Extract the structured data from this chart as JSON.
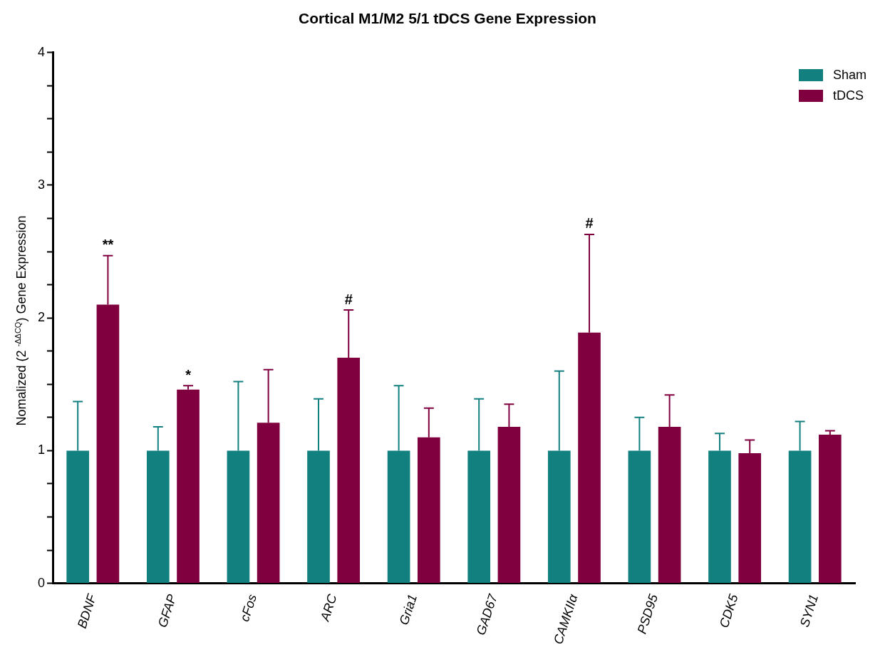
{
  "chart_data": {
    "type": "bar",
    "title": "Cortical M1/M2 5/1 tDCS Gene Expression",
    "ylabel": "Nomalized (2 $^{-ΔΔCQ}$) Gene Expression",
    "categories": [
      "BDNF",
      "GFAP",
      "cFos",
      "ARC",
      "Gria1",
      "GAD67",
      "CAMKIIα",
      "PSD95",
      "CDK5",
      "SYN1"
    ],
    "series": [
      {
        "name": "Sham",
        "color": "#12807f",
        "values": [
          1,
          1,
          1,
          1,
          1,
          1,
          1,
          1,
          1,
          1
        ],
        "errors": [
          [
            1,
            1.37
          ],
          [
            1,
            1.18
          ],
          [
            1,
            1.52
          ],
          [
            1,
            1.39
          ],
          [
            1,
            1.49
          ],
          [
            1,
            1.39
          ],
          [
            1,
            1.6
          ],
          [
            1,
            1.25
          ],
          [
            1,
            1.13
          ],
          [
            1,
            1.22
          ]
        ]
      },
      {
        "name": "tDCS",
        "color": "#80003f",
        "values": [
          2.1,
          1.46,
          1.21,
          1.7,
          1.1,
          1.18,
          1.89,
          1.18,
          0.98,
          1.12
        ],
        "errors": [
          [
            2.1,
            2.47
          ],
          [
            1.46,
            1.49
          ],
          [
            1.21,
            1.61
          ],
          [
            1.7,
            2.06
          ],
          [
            1.1,
            1.32
          ],
          [
            1.18,
            1.35
          ],
          [
            1.89,
            2.63
          ],
          [
            1.18,
            1.42
          ],
          [
            0.98,
            1.08
          ],
          [
            1.12,
            1.15
          ]
        ]
      }
    ],
    "ylim": [
      0,
      4
    ],
    "yticks": [
      0,
      {
        "value": 0.25,
        "label": null
      },
      {
        "value": 0.5,
        "label": null
      },
      {
        "value": 0.75,
        "label": null
      },
      1,
      {
        "value": 1.25,
        "label": null
      },
      {
        "value": 1.5,
        "label": null
      },
      {
        "value": 1.75,
        "label": null
      },
      2,
      {
        "value": 2.25,
        "label": null
      },
      {
        "value": 2.5,
        "label": null
      },
      {
        "value": 2.75,
        "label": null
      },
      3,
      {
        "value": 3.25,
        "label": null
      },
      {
        "value": 3.5,
        "label": null
      },
      {
        "value": 3.75,
        "label": null
      },
      4
    ],
    "annotations": [
      "**",
      "*",
      "#",
      "#"
    ],
    "grid": false,
    "legend": "top right"
  }
}
